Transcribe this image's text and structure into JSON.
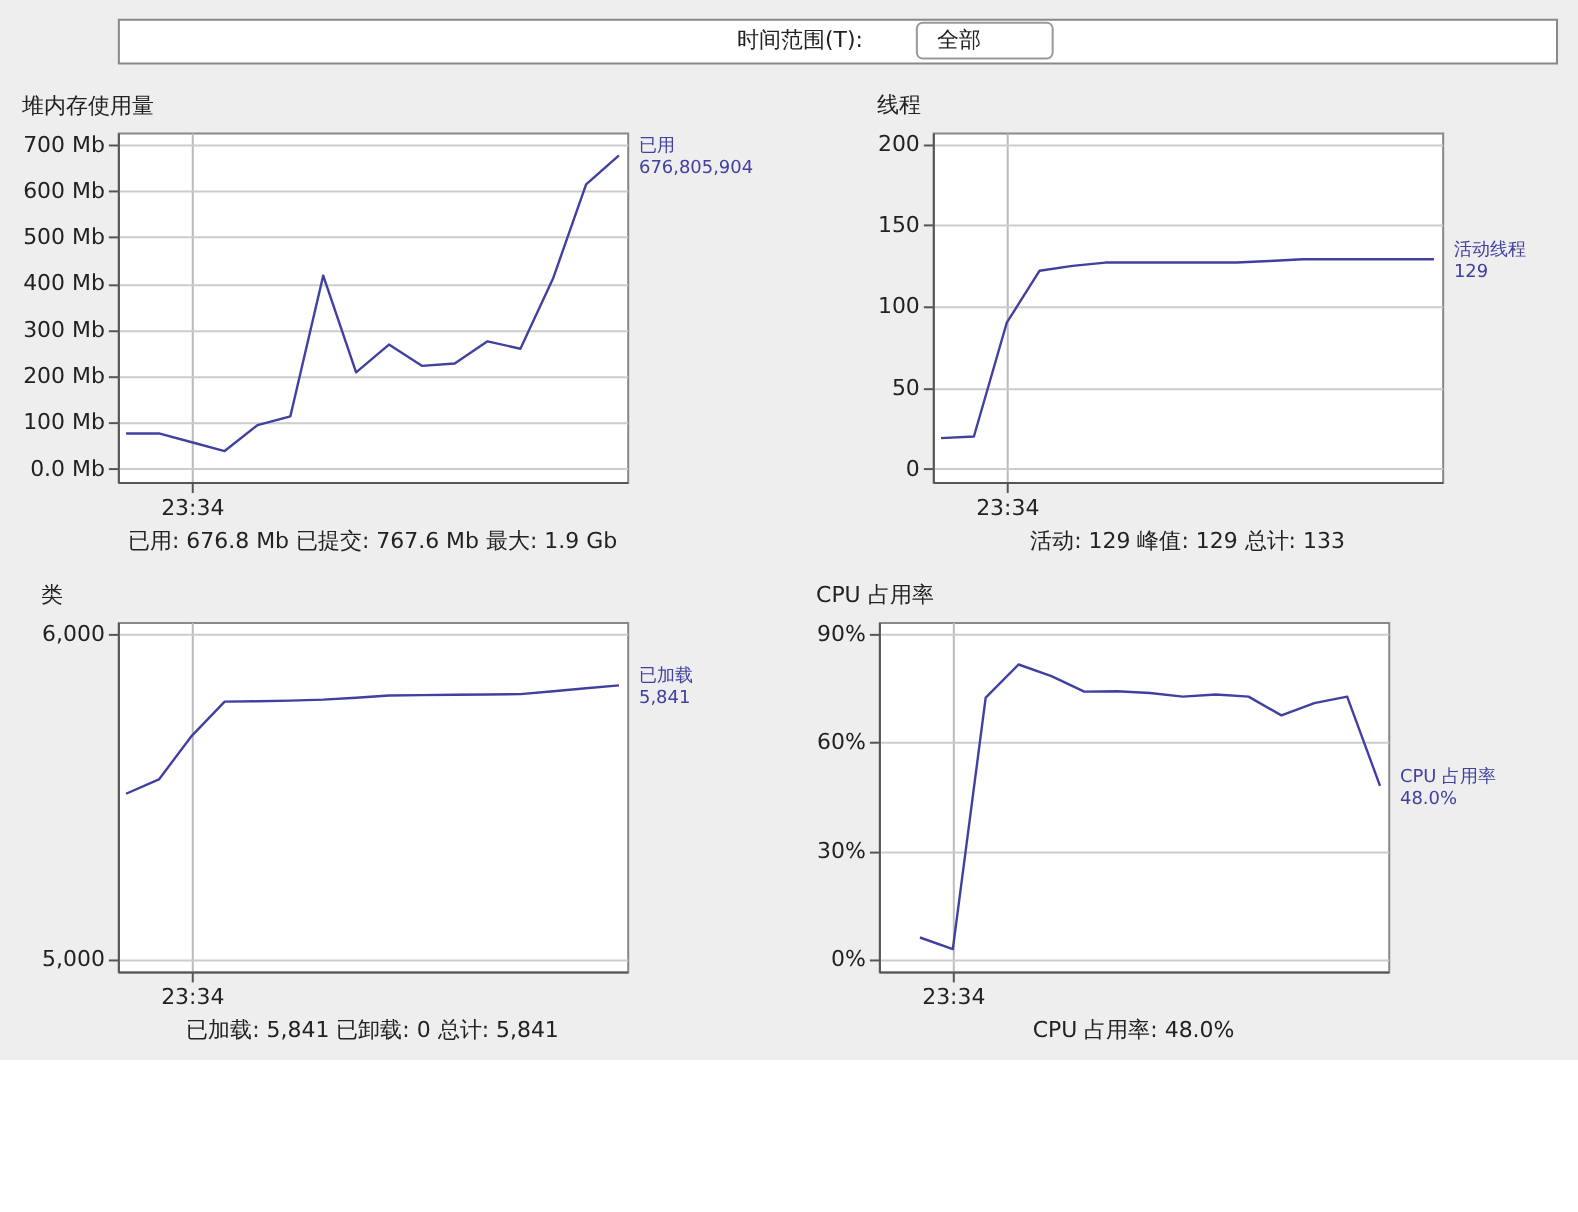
{
  "chart_data": [
    {
      "type": "other",
      "annotations": [
        "时间范围(T):",
        "全部"
      ]
    },
    {
      "type": "line",
      "title": "堆内存使用量",
      "annotations": [
        "676,805,904",
        "已用: 676.8 Mb    已提交: 767.6 Mb    最大: 1.9 Gb"
      ],
      "categories": [
        null,
        null,
        "23:34",
        null,
        null,
        null,
        null,
        null,
        null,
        null,
        null,
        null,
        null,
        null,
        null,
        null
      ],
      "series": [
        {
          "name": "已用",
          "color": "#4040a0",
          "values": [
            76,
            76,
            57,
            38,
            94,
            113,
            417,
            208,
            268,
            222,
            227,
            275,
            259,
            412,
            614,
            676.8
          ]
        }
      ],
      "ylim": [
        -29,
        726
      ],
      "yticks": [
        {
          "value": 0,
          "label": "0.0 Mb"
        },
        {
          "value": 100,
          "label": "100 Mb"
        },
        {
          "value": 200,
          "label": "200 Mb"
        },
        {
          "value": 300,
          "label": "300 Mb"
        },
        {
          "value": 400,
          "label": "400 Mb"
        },
        {
          "value": 500,
          "label": "500 Mb"
        },
        {
          "value": 600,
          "label": "600 Mb"
        },
        {
          "value": 700,
          "label": "700 Mb"
        }
      ],
      "grid": true
    },
    {
      "type": "line",
      "title": "线程",
      "annotations": [
        "活动: 129    峰值: 129    总计: 133"
      ],
      "categories": [
        null,
        null,
        "23:34",
        null,
        null,
        null,
        null,
        null,
        null,
        null,
        null,
        null,
        null,
        null,
        null,
        null
      ],
      "series": [
        {
          "name": "活动线程",
          "color": "#4040a0",
          "values": [
            19,
            20,
            90,
            122,
            125,
            127,
            127,
            127,
            127,
            127,
            128,
            129,
            129,
            129,
            129,
            129
          ],
          "value_labels": [
            null,
            null,
            null,
            null,
            null,
            null,
            null,
            null,
            null,
            null,
            null,
            null,
            null,
            null,
            null,
            "129"
          ]
        }
      ],
      "ylim": [
        -8,
        207
      ],
      "yticks": [
        0,
        50,
        100,
        150,
        200
      ],
      "grid": true
    },
    {
      "type": "line",
      "title": "类",
      "annotations": [
        "已加载: 5,841    已卸载: 0    总计: 5,841"
      ],
      "categories": [
        null,
        null,
        "23:34",
        null,
        null,
        null,
        null,
        null,
        null,
        null,
        null,
        null,
        null,
        null,
        null,
        null
      ],
      "series": [
        {
          "name": "已加载",
          "color": "#4040a0",
          "values": [
            5508,
            5552,
            5686,
            5791,
            5792,
            5794,
            5797,
            5803,
            5810,
            5811,
            5812,
            5813,
            5814,
            5823,
            5832,
            5841
          ],
          "value_labels": [
            null,
            null,
            null,
            null,
            null,
            null,
            null,
            null,
            null,
            null,
            null,
            null,
            null,
            null,
            null,
            "5,841"
          ]
        }
      ],
      "ylim": [
        4962,
        6036
      ],
      "yticks": [
        {
          "value": 5000,
          "label": "5,000"
        },
        {
          "value": 6000,
          "label": "6,000"
        }
      ],
      "grid": true
    },
    {
      "type": "line",
      "title": "CPU 占用率",
      "annotations": [
        "CPU 占用率: 48.0%"
      ],
      "categories": [
        null,
        null,
        "23:34",
        null,
        null,
        null,
        null,
        null,
        null,
        null,
        null,
        null,
        null,
        null,
        null,
        null
      ],
      "series": [
        {
          "name": "CPU 占用率",
          "color": "#4040a0",
          "values": [
            null,
            6.0,
            2.8,
            72.4,
            81.6,
            78.4,
            74.1,
            74.2,
            73.7,
            72.7,
            73.3,
            72.7,
            67.5,
            70.9,
            72.7,
            48.0
          ],
          "value_labels": [
            null,
            null,
            null,
            null,
            null,
            null,
            null,
            null,
            null,
            null,
            null,
            null,
            null,
            null,
            null,
            "48.0%"
          ]
        }
      ],
      "ylim": [
        -3.4,
        93.4
      ],
      "yticks": [
        {
          "value": 0,
          "label": "0%"
        },
        {
          "value": 30,
          "label": "30%"
        },
        {
          "value": 60,
          "label": "60%"
        },
        {
          "value": 90,
          "label": "90%"
        }
      ],
      "grid": true
    }
  ]
}
